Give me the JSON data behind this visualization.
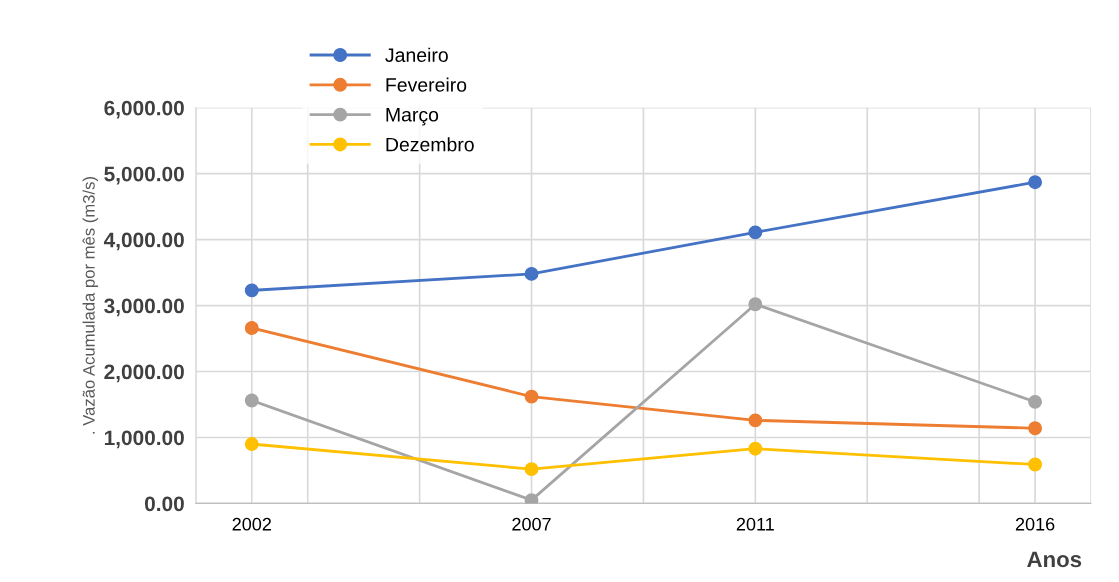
{
  "chart_data": {
    "type": "line",
    "xlabel": "Anos",
    "ylabel": ". Vazão Acumulada por mês (m3/s)",
    "x": [
      2002,
      2007,
      2011,
      2016
    ],
    "series": [
      {
        "name": "Janeiro",
        "color": "#4472c4",
        "values": [
          3230,
          3480,
          4110,
          4870
        ]
      },
      {
        "name": "Fevereiro",
        "color": "#ed7d31",
        "values": [
          2660,
          1620,
          1260,
          1140
        ]
      },
      {
        "name": "Março",
        "color": "#a5a5a5",
        "values": [
          1560,
          50,
          3020,
          1540
        ]
      },
      {
        "name": "Dezembro",
        "color": "#ffc000",
        "values": [
          900,
          520,
          830,
          590
        ]
      }
    ],
    "xlim": [
      2001,
      2017
    ],
    "xticks": [
      {
        "value": 2001,
        "label": null
      },
      2002,
      {
        "value": 2003,
        "label": null
      },
      {
        "value": 2005,
        "label": null
      },
      2007,
      {
        "value": 2009,
        "label": null
      },
      2011,
      {
        "value": 2013,
        "label": null
      },
      {
        "value": 2015,
        "label": null
      },
      2016,
      {
        "value": 2017,
        "label": null
      }
    ],
    "ylim": [
      0,
      6000
    ],
    "yticks": [
      {
        "value": 0,
        "label": "0.00"
      },
      {
        "value": 1000,
        "label": "1,000.00"
      },
      {
        "value": 2000,
        "label": "2,000.00"
      },
      {
        "value": 3000,
        "label": "3,000.00"
      },
      {
        "value": 4000,
        "label": "4,000.00"
      },
      {
        "value": 5000,
        "label": "5,000.00"
      },
      {
        "value": 6000,
        "label": "6,000.00"
      }
    ],
    "grid": true,
    "legend": "top left",
    "marker": "circle",
    "line_style": "solid"
  }
}
